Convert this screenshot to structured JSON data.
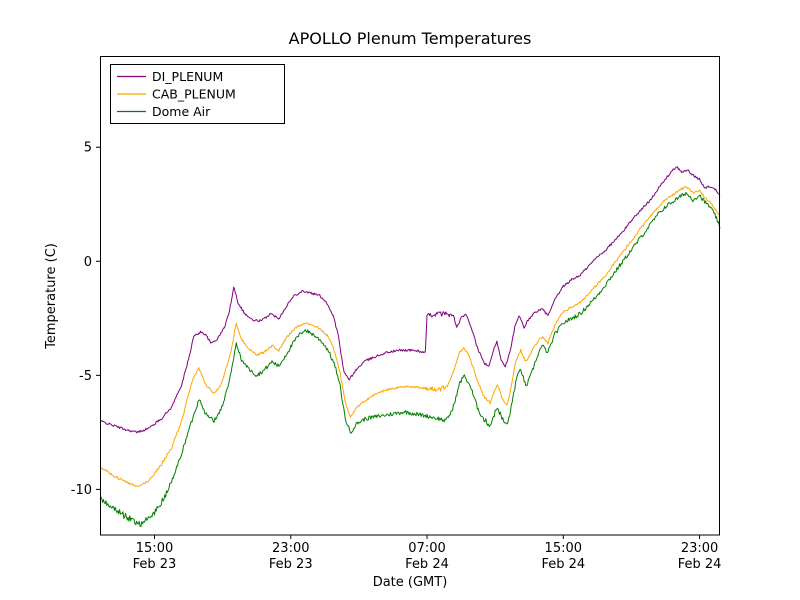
{
  "chart_data": {
    "type": "line",
    "title": "APOLLO Plenum Temperatures",
    "xlabel": "Date (GMT)",
    "ylabel": "Temperature (C)",
    "x_unit": "hours since Feb 23 00:00 GMT",
    "xlim": [
      11.8,
      48.2
    ],
    "ylim": [
      -12,
      9
    ],
    "grid": false,
    "legend_position": "upper left",
    "x_ticks": [
      {
        "value": 15,
        "time": "15:00",
        "date": "Feb 23"
      },
      {
        "value": 23,
        "time": "23:00",
        "date": "Feb 23"
      },
      {
        "value": 31,
        "time": "07:00",
        "date": "Feb 24"
      },
      {
        "value": 39,
        "time": "15:00",
        "date": "Feb 24"
      },
      {
        "value": 47,
        "time": "23:00",
        "date": "Feb 24"
      }
    ],
    "y_ticks": [
      5,
      0,
      -5,
      -10
    ],
    "series": [
      {
        "name": "DI_PLENUM",
        "color": "#800080",
        "noise": 0.05,
        "noisy_ranges": [
          [
            31.0,
            32.5,
            0.1
          ]
        ],
        "points": [
          [
            11.8,
            -7.0
          ],
          [
            12.6,
            -7.2
          ],
          [
            13.4,
            -7.4
          ],
          [
            14.0,
            -7.5
          ],
          [
            14.7,
            -7.3
          ],
          [
            15.4,
            -6.9
          ],
          [
            16.0,
            -6.4
          ],
          [
            16.6,
            -5.4
          ],
          [
            17.0,
            -4.3
          ],
          [
            17.3,
            -3.3
          ],
          [
            17.7,
            -3.1
          ],
          [
            18.0,
            -3.2
          ],
          [
            18.3,
            -3.6
          ],
          [
            18.7,
            -3.4
          ],
          [
            19.1,
            -2.9
          ],
          [
            19.4,
            -2.2
          ],
          [
            19.65,
            -1.1
          ],
          [
            19.9,
            -1.8
          ],
          [
            20.3,
            -2.3
          ],
          [
            20.8,
            -2.6
          ],
          [
            21.3,
            -2.6
          ],
          [
            21.8,
            -2.3
          ],
          [
            22.3,
            -2.5
          ],
          [
            22.8,
            -1.9
          ],
          [
            23.2,
            -1.5
          ],
          [
            23.7,
            -1.3
          ],
          [
            24.2,
            -1.4
          ],
          [
            24.7,
            -1.5
          ],
          [
            25.1,
            -1.8
          ],
          [
            25.5,
            -2.4
          ],
          [
            25.8,
            -3.3
          ],
          [
            26.1,
            -4.8
          ],
          [
            26.4,
            -5.2
          ],
          [
            26.8,
            -4.8
          ],
          [
            27.3,
            -4.4
          ],
          [
            27.9,
            -4.2
          ],
          [
            28.6,
            -4.0
          ],
          [
            29.4,
            -3.9
          ],
          [
            30.2,
            -3.9
          ],
          [
            30.9,
            -4.0
          ],
          [
            31.0,
            -2.4
          ],
          [
            31.6,
            -2.3
          ],
          [
            32.2,
            -2.3
          ],
          [
            32.55,
            -2.4
          ],
          [
            32.75,
            -2.9
          ],
          [
            33.0,
            -2.5
          ],
          [
            33.25,
            -2.3
          ],
          [
            33.6,
            -2.9
          ],
          [
            34.0,
            -3.9
          ],
          [
            34.4,
            -4.5
          ],
          [
            34.65,
            -4.6
          ],
          [
            34.9,
            -3.9
          ],
          [
            35.1,
            -3.5
          ],
          [
            35.35,
            -4.3
          ],
          [
            35.6,
            -4.6
          ],
          [
            35.9,
            -3.9
          ],
          [
            36.15,
            -2.9
          ],
          [
            36.4,
            -2.4
          ],
          [
            36.7,
            -2.9
          ],
          [
            37.0,
            -2.5
          ],
          [
            37.4,
            -2.2
          ],
          [
            37.8,
            -2.1
          ],
          [
            38.1,
            -2.4
          ],
          [
            38.5,
            -1.7
          ],
          [
            39.0,
            -1.1
          ],
          [
            39.5,
            -0.8
          ],
          [
            40.0,
            -0.6
          ],
          [
            40.5,
            -0.2
          ],
          [
            41.0,
            0.2
          ],
          [
            41.5,
            0.5
          ],
          [
            42.0,
            0.9
          ],
          [
            42.5,
            1.3
          ],
          [
            43.0,
            1.8
          ],
          [
            43.5,
            2.2
          ],
          [
            44.0,
            2.6
          ],
          [
            44.5,
            3.1
          ],
          [
            45.0,
            3.6
          ],
          [
            45.4,
            4.0
          ],
          [
            45.7,
            4.1
          ],
          [
            46.0,
            3.9
          ],
          [
            46.3,
            4.0
          ],
          [
            46.7,
            3.7
          ],
          [
            47.0,
            3.6
          ],
          [
            47.3,
            3.2
          ],
          [
            47.6,
            3.3
          ],
          [
            48.0,
            3.1
          ],
          [
            48.2,
            2.9
          ]
        ]
      },
      {
        "name": "CAB_PLENUM",
        "color": "#ffa500",
        "noise": 0.05,
        "noisy_ranges": [
          [
            30.9,
            32.1,
            0.12
          ]
        ],
        "points": [
          [
            11.8,
            -9.0
          ],
          [
            12.6,
            -9.4
          ],
          [
            13.4,
            -9.7
          ],
          [
            14.0,
            -9.9
          ],
          [
            14.7,
            -9.6
          ],
          [
            15.4,
            -8.9
          ],
          [
            16.0,
            -8.2
          ],
          [
            16.6,
            -7.0
          ],
          [
            17.0,
            -5.8
          ],
          [
            17.3,
            -5.1
          ],
          [
            17.6,
            -4.7
          ],
          [
            18.0,
            -5.4
          ],
          [
            18.5,
            -5.8
          ],
          [
            18.9,
            -5.4
          ],
          [
            19.2,
            -4.7
          ],
          [
            19.5,
            -3.9
          ],
          [
            19.8,
            -2.7
          ],
          [
            20.1,
            -3.4
          ],
          [
            20.5,
            -3.8
          ],
          [
            21.0,
            -4.1
          ],
          [
            21.4,
            -4.0
          ],
          [
            21.9,
            -3.7
          ],
          [
            22.3,
            -3.9
          ],
          [
            22.8,
            -3.3
          ],
          [
            23.3,
            -2.9
          ],
          [
            23.8,
            -2.7
          ],
          [
            24.3,
            -2.8
          ],
          [
            24.8,
            -3.0
          ],
          [
            25.2,
            -3.3
          ],
          [
            25.6,
            -4.0
          ],
          [
            25.9,
            -4.9
          ],
          [
            26.2,
            -6.2
          ],
          [
            26.5,
            -6.8
          ],
          [
            26.9,
            -6.4
          ],
          [
            27.4,
            -6.1
          ],
          [
            28.0,
            -5.8
          ],
          [
            28.8,
            -5.6
          ],
          [
            29.6,
            -5.5
          ],
          [
            30.4,
            -5.5
          ],
          [
            31.0,
            -5.6
          ],
          [
            31.8,
            -5.6
          ],
          [
            32.2,
            -5.5
          ],
          [
            32.6,
            -4.7
          ],
          [
            32.9,
            -4.0
          ],
          [
            33.15,
            -3.8
          ],
          [
            33.5,
            -4.2
          ],
          [
            33.9,
            -5.1
          ],
          [
            34.3,
            -5.9
          ],
          [
            34.7,
            -6.2
          ],
          [
            34.95,
            -5.7
          ],
          [
            35.15,
            -5.4
          ],
          [
            35.4,
            -6.0
          ],
          [
            35.7,
            -6.3
          ],
          [
            35.95,
            -5.5
          ],
          [
            36.2,
            -4.4
          ],
          [
            36.5,
            -3.9
          ],
          [
            36.8,
            -4.4
          ],
          [
            37.1,
            -4.0
          ],
          [
            37.5,
            -3.5
          ],
          [
            37.8,
            -3.3
          ],
          [
            38.1,
            -3.6
          ],
          [
            38.5,
            -2.8
          ],
          [
            39.0,
            -2.2
          ],
          [
            39.5,
            -2.0
          ],
          [
            40.0,
            -1.8
          ],
          [
            40.5,
            -1.4
          ],
          [
            41.0,
            -1.0
          ],
          [
            41.5,
            -0.6
          ],
          [
            42.0,
            -0.1
          ],
          [
            42.5,
            0.4
          ],
          [
            43.0,
            0.9
          ],
          [
            43.5,
            1.4
          ],
          [
            44.0,
            1.9
          ],
          [
            44.5,
            2.3
          ],
          [
            45.0,
            2.7
          ],
          [
            45.4,
            2.9
          ],
          [
            45.8,
            3.1
          ],
          [
            46.2,
            3.3
          ],
          [
            46.6,
            3.0
          ],
          [
            47.0,
            3.1
          ],
          [
            47.3,
            2.8
          ],
          [
            47.6,
            2.6
          ],
          [
            48.0,
            2.2
          ],
          [
            48.2,
            1.9
          ]
        ]
      },
      {
        "name": "Dome Air",
        "color": "#007f00",
        "noise": 0.09,
        "noisy_ranges": [
          [
            11.8,
            16.2,
            0.14
          ],
          [
            33.5,
            36.5,
            0.12
          ]
        ],
        "points": [
          [
            11.8,
            -10.4
          ],
          [
            12.4,
            -10.7
          ],
          [
            13.1,
            -11.1
          ],
          [
            13.8,
            -11.4
          ],
          [
            14.2,
            -11.5
          ],
          [
            14.8,
            -11.2
          ],
          [
            15.4,
            -10.6
          ],
          [
            16.0,
            -9.7
          ],
          [
            16.6,
            -8.4
          ],
          [
            17.1,
            -7.2
          ],
          [
            17.45,
            -6.4
          ],
          [
            17.65,
            -6.0
          ],
          [
            18.0,
            -6.7
          ],
          [
            18.5,
            -7.0
          ],
          [
            18.9,
            -6.5
          ],
          [
            19.2,
            -5.8
          ],
          [
            19.5,
            -4.9
          ],
          [
            19.8,
            -3.6
          ],
          [
            20.1,
            -4.3
          ],
          [
            20.5,
            -4.7
          ],
          [
            21.0,
            -5.0
          ],
          [
            21.4,
            -4.8
          ],
          [
            21.9,
            -4.4
          ],
          [
            22.3,
            -4.6
          ],
          [
            22.8,
            -4.0
          ],
          [
            23.3,
            -3.4
          ],
          [
            23.8,
            -3.0
          ],
          [
            24.3,
            -3.2
          ],
          [
            24.8,
            -3.5
          ],
          [
            25.2,
            -3.9
          ],
          [
            25.6,
            -4.6
          ],
          [
            25.9,
            -5.5
          ],
          [
            26.2,
            -6.9
          ],
          [
            26.5,
            -7.5
          ],
          [
            26.9,
            -7.1
          ],
          [
            27.4,
            -6.9
          ],
          [
            28.1,
            -6.8
          ],
          [
            28.9,
            -6.7
          ],
          [
            29.7,
            -6.6
          ],
          [
            30.4,
            -6.7
          ],
          [
            31.1,
            -6.8
          ],
          [
            31.7,
            -6.9
          ],
          [
            32.1,
            -7.0
          ],
          [
            32.5,
            -6.5
          ],
          [
            32.9,
            -5.4
          ],
          [
            33.15,
            -5.0
          ],
          [
            33.5,
            -5.4
          ],
          [
            33.9,
            -6.3
          ],
          [
            34.3,
            -6.9
          ],
          [
            34.7,
            -7.2
          ],
          [
            34.95,
            -6.7
          ],
          [
            35.15,
            -6.4
          ],
          [
            35.4,
            -6.9
          ],
          [
            35.7,
            -7.2
          ],
          [
            35.95,
            -6.4
          ],
          [
            36.2,
            -5.3
          ],
          [
            36.5,
            -4.7
          ],
          [
            36.8,
            -5.5
          ],
          [
            37.1,
            -5.0
          ],
          [
            37.5,
            -4.1
          ],
          [
            37.75,
            -3.7
          ],
          [
            38.1,
            -4.0
          ],
          [
            38.5,
            -3.2
          ],
          [
            39.0,
            -2.7
          ],
          [
            39.5,
            -2.5
          ],
          [
            40.0,
            -2.3
          ],
          [
            40.5,
            -1.9
          ],
          [
            41.0,
            -1.5
          ],
          [
            41.5,
            -1.0
          ],
          [
            42.0,
            -0.5
          ],
          [
            42.5,
            0.0
          ],
          [
            43.0,
            0.5
          ],
          [
            43.5,
            1.0
          ],
          [
            44.0,
            1.5
          ],
          [
            44.5,
            2.0
          ],
          [
            45.0,
            2.4
          ],
          [
            45.4,
            2.6
          ],
          [
            45.8,
            2.8
          ],
          [
            46.2,
            3.0
          ],
          [
            46.6,
            2.7
          ],
          [
            47.0,
            2.9
          ],
          [
            47.3,
            2.6
          ],
          [
            47.6,
            2.4
          ],
          [
            48.0,
            1.9
          ],
          [
            48.2,
            1.4
          ]
        ]
      }
    ]
  }
}
